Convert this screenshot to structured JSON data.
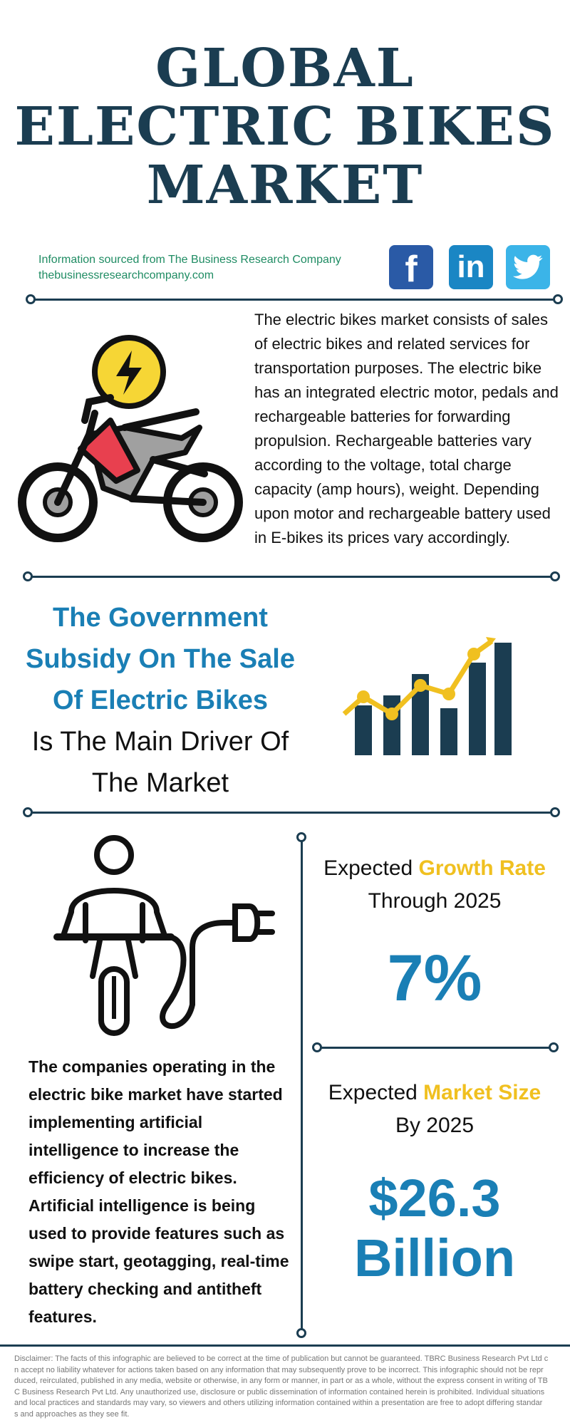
{
  "title": {
    "line1": "GLOBAL",
    "line2": "ELECTRIC BIKES",
    "line3": "MARKET"
  },
  "source": {
    "line1": "Information sourced from The Business Research Company",
    "line2": "thebusinessresearchcompany.com"
  },
  "social": {
    "facebook": {
      "icon": "facebook-icon",
      "glyph": "f",
      "color": "#2a5aa6"
    },
    "linkedin": {
      "icon": "linkedin-icon",
      "glyph": "in",
      "color": "#1a86c4"
    },
    "twitter": {
      "icon": "twitter-icon",
      "color": "#3bb4e8"
    }
  },
  "description": "The electric bikes market consists of sales of electric bikes and related services for transportation purposes. The electric bike has an integrated electric motor, pedals and rechargeable batteries for forwarding propulsion. Rechargeable batteries vary according to the voltage, total charge capacity (amp hours), weight. Depending upon motor and rechargeable battery used in E-bikes its prices vary accordingly.",
  "driver": {
    "line1": "The Government",
    "line2": "Subsidy On The Sale",
    "line3": "Of Electric Bikes",
    "line4": "Is The Main Driver Of",
    "line5": "The Market"
  },
  "growth": {
    "prefix": "Expected ",
    "highlight": "Growth Rate",
    "line2": "Through 2025",
    "value": "7%"
  },
  "market_size": {
    "prefix": "Expected ",
    "highlight": "Market Size",
    "line2": "By 2025",
    "value_line1": "$26.3",
    "value_line2": "Billion"
  },
  "ai_text": "The companies operating in the electric bike market have started implementing artificial intelligence to increase the efficiency of electric bikes. Artificial intelligence is being used to provide features such as swipe start, geotagging, real-time battery checking and antitheft features.",
  "disclaimer": [
    "Disclaimer: The facts of this infographic are believed to be correct at the time of publication but cannot be guaranteed. TBRC Business Research Pvt Ltd c",
    "n accept no liability whatever for actions taken based on any information that may subsequently prove to be incorrect. This infographic should not be repr",
    "duced, reirculated, published in any media, website or otherwise, in any form or manner, in part or as a whole, without the express consent in writing of TB",
    "C Business Research Pvt Ltd. Any unauthorized use, disclosure or public dissemination of information contained herein is prohibited. Individual situations",
    "and local practices and standards may vary, so viewers and others utilizing information contained within a presentation are free to adopt differing standar",
    "s and approaches as they see fit."
  ],
  "colors": {
    "navy": "#1b3d51",
    "blue": "#1a7fb5",
    "yellow": "#f0c020",
    "red": "#e8404f"
  }
}
